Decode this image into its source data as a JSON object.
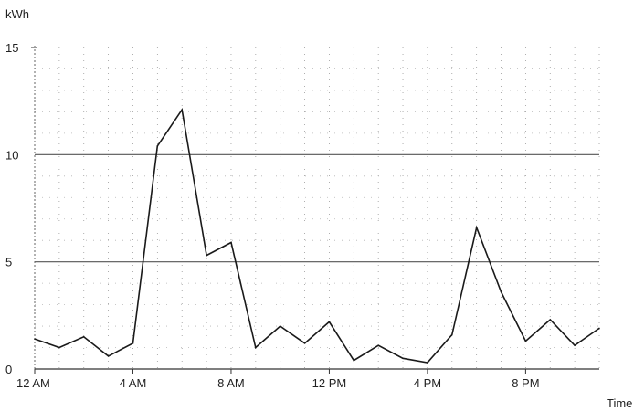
{
  "chart_data": {
    "type": "line",
    "ylabel": "kWh",
    "xlabel": "Time",
    "ylim": [
      0,
      15
    ],
    "yticks": [
      {
        "value": 0,
        "label": "0"
      },
      {
        "value": 5,
        "label": "5"
      },
      {
        "value": 10,
        "label": "10"
      },
      {
        "value": 15,
        "label": "15"
      }
    ],
    "xlim": [
      0,
      23
    ],
    "xticks": [
      {
        "value": 0,
        "label": "12 AM"
      },
      {
        "value": 4,
        "label": "4 AM"
      },
      {
        "value": 8,
        "label": "8 AM"
      },
      {
        "value": 12,
        "label": "12 PM"
      },
      {
        "value": 16,
        "label": "4 PM"
      },
      {
        "value": 20,
        "label": "8 PM"
      }
    ],
    "reference_lines": [
      5,
      10
    ],
    "grid": "dotted",
    "series": [
      {
        "color": "#1a1a1a",
        "x": [
          0,
          1,
          2,
          3,
          4,
          5,
          6,
          7,
          8,
          9,
          10,
          11,
          12,
          13,
          14,
          15,
          16,
          17,
          18,
          19,
          20,
          21,
          22,
          23
        ],
        "values": [
          1.4,
          1.0,
          1.5,
          0.6,
          1.2,
          10.4,
          12.1,
          5.3,
          5.9,
          1.0,
          2.0,
          1.2,
          2.2,
          0.4,
          1.1,
          0.5,
          0.3,
          1.6,
          6.6,
          3.6,
          1.3,
          2.3,
          1.1,
          1.9
        ]
      }
    ]
  }
}
